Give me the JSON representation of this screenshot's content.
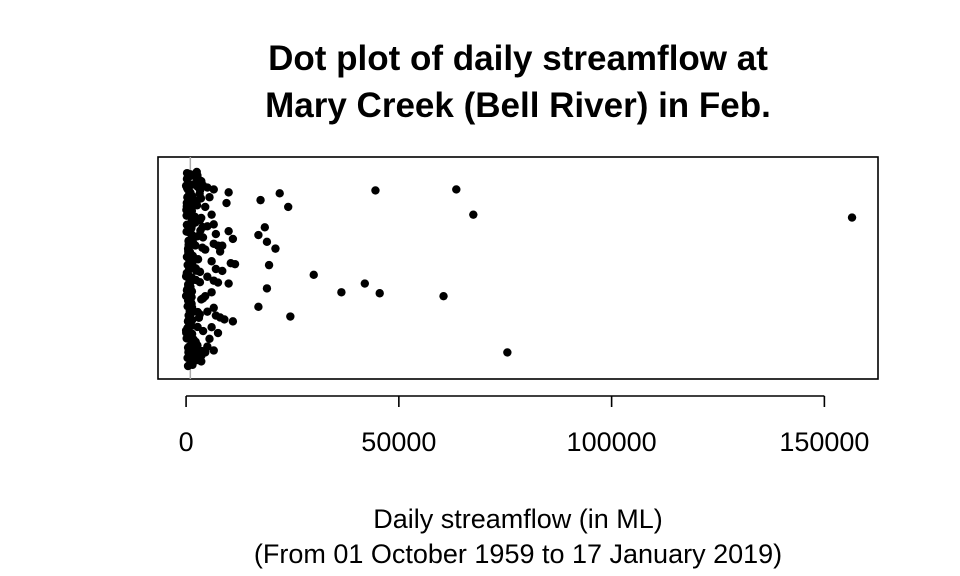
{
  "chart_data": {
    "type": "scatter",
    "title_lines": [
      "Dot plot of daily streamflow at",
      "Mary Creek (Bell River) in Feb."
    ],
    "xlabel_lines": [
      "Daily streamflow (in ML)",
      "(From 01 October 1959 to 17 January 2019)"
    ],
    "ylabel": "",
    "xlim": [
      -6600,
      162600
    ],
    "x_ticks": [
      0,
      50000,
      100000,
      150000
    ],
    "x_tick_labels": [
      "0",
      "50000",
      "100000",
      "150000"
    ],
    "reference_line_x": 1000,
    "reference_line_color": "#aaaaaa",
    "point_color": "#000000",
    "grid": false,
    "legend": "none",
    "y_scale": "jittered index (no y axis shown)",
    "points": [
      {
        "x": 44500,
        "y": 0.905
      },
      {
        "x": 63500,
        "y": 0.91
      },
      {
        "x": 22000,
        "y": 0.89
      },
      {
        "x": 17500,
        "y": 0.855
      },
      {
        "x": 24000,
        "y": 0.82
      },
      {
        "x": 67500,
        "y": 0.78
      },
      {
        "x": 156500,
        "y": 0.765
      },
      {
        "x": 18500,
        "y": 0.715
      },
      {
        "x": 17000,
        "y": 0.675
      },
      {
        "x": 19000,
        "y": 0.64
      },
      {
        "x": 21000,
        "y": 0.605
      },
      {
        "x": 19500,
        "y": 0.52
      },
      {
        "x": 30000,
        "y": 0.47
      },
      {
        "x": 42000,
        "y": 0.425
      },
      {
        "x": 19000,
        "y": 0.4
      },
      {
        "x": 36500,
        "y": 0.38
      },
      {
        "x": 45500,
        "y": 0.375
      },
      {
        "x": 60500,
        "y": 0.36
      },
      {
        "x": 17000,
        "y": 0.305
      },
      {
        "x": 24500,
        "y": 0.255
      },
      {
        "x": 75500,
        "y": 0.07
      },
      {
        "x": 10000,
        "y": 0.895
      },
      {
        "x": 9500,
        "y": 0.84
      },
      {
        "x": 10000,
        "y": 0.695
      },
      {
        "x": 11000,
        "y": 0.655
      },
      {
        "x": 8500,
        "y": 0.62
      },
      {
        "x": 10500,
        "y": 0.53
      },
      {
        "x": 11500,
        "y": 0.525
      },
      {
        "x": 10000,
        "y": 0.425
      },
      {
        "x": 9000,
        "y": 0.24
      },
      {
        "x": 11000,
        "y": 0.23
      },
      {
        "x": 6500,
        "y": 0.91
      },
      {
        "x": 5000,
        "y": 0.92
      },
      {
        "x": 5500,
        "y": 0.87
      },
      {
        "x": 6000,
        "y": 0.78
      },
      {
        "x": 6500,
        "y": 0.73
      },
      {
        "x": 7000,
        "y": 0.68
      },
      {
        "x": 6500,
        "y": 0.63
      },
      {
        "x": 7500,
        "y": 0.62
      },
      {
        "x": 8000,
        "y": 0.59
      },
      {
        "x": 6000,
        "y": 0.54
      },
      {
        "x": 7000,
        "y": 0.5
      },
      {
        "x": 8500,
        "y": 0.49
      },
      {
        "x": 6500,
        "y": 0.44
      },
      {
        "x": 7500,
        "y": 0.43
      },
      {
        "x": 6000,
        "y": 0.38
      },
      {
        "x": 6500,
        "y": 0.3
      },
      {
        "x": 7000,
        "y": 0.26
      },
      {
        "x": 8000,
        "y": 0.25
      },
      {
        "x": 6000,
        "y": 0.2
      },
      {
        "x": 7500,
        "y": 0.17
      },
      {
        "x": 5500,
        "y": 0.14
      },
      {
        "x": 6500,
        "y": 0.08
      },
      {
        "x": 4500,
        "y": 0.07
      },
      {
        "x": 5000,
        "y": 0.1
      },
      {
        "x": 4000,
        "y": 0.93
      },
      {
        "x": 4500,
        "y": 0.82
      },
      {
        "x": 5000,
        "y": 0.72
      },
      {
        "x": 4500,
        "y": 0.6
      },
      {
        "x": 5000,
        "y": 0.46
      },
      {
        "x": 4500,
        "y": 0.36
      },
      {
        "x": 5000,
        "y": 0.28
      },
      {
        "x": 4000,
        "y": 0.18
      }
    ]
  }
}
